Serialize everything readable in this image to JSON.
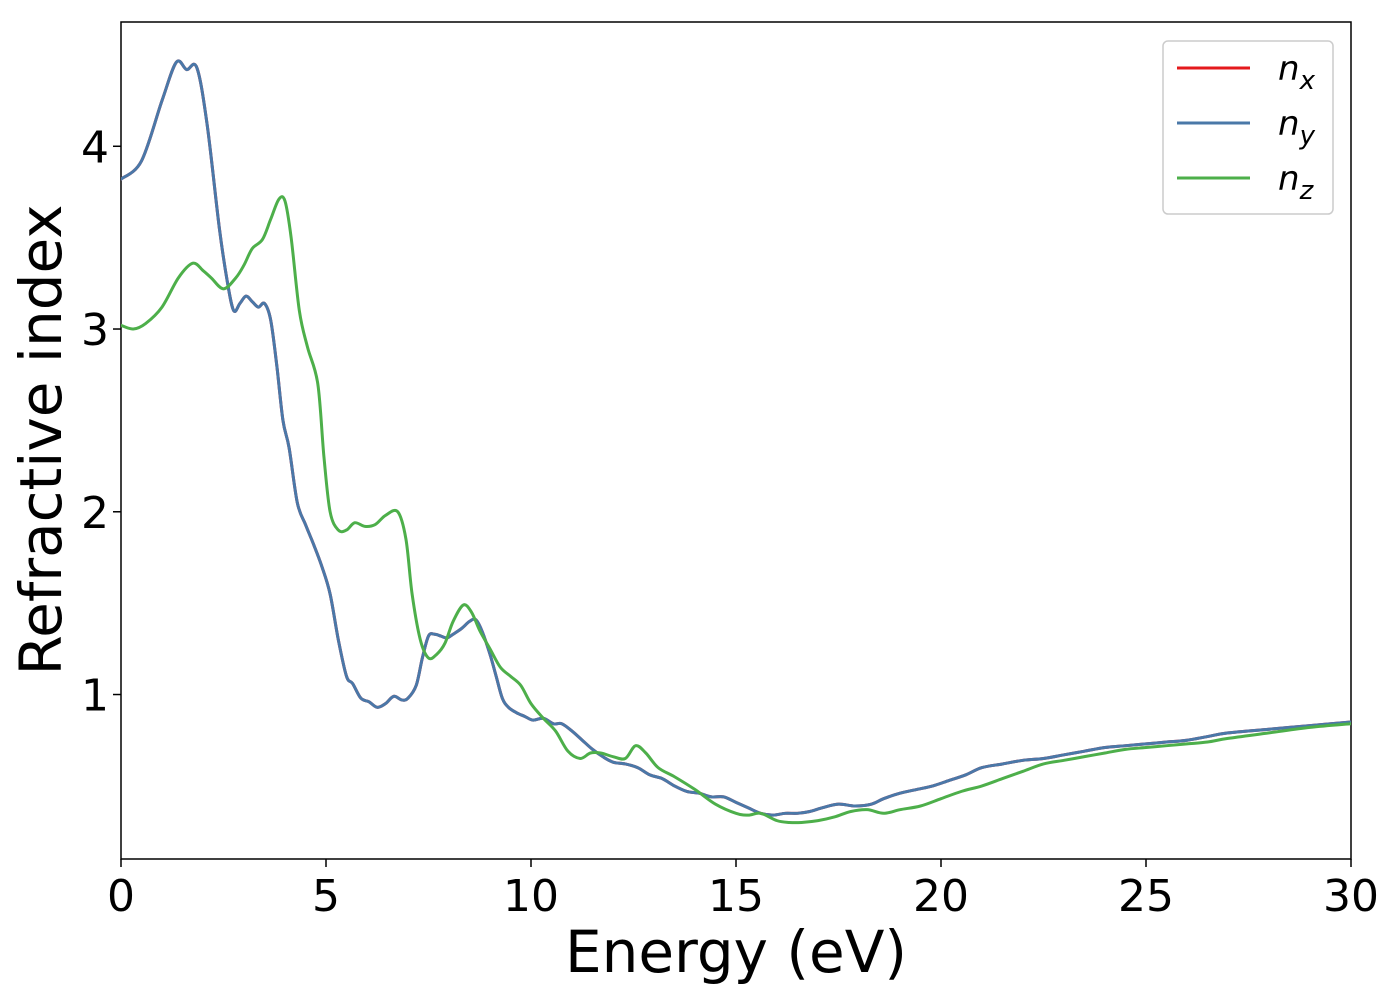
{
  "chart_data": {
    "type": "line",
    "xlabel": "Energy (eV)",
    "ylabel": "Refractive index",
    "xlim": [
      0,
      30
    ],
    "ylim": [
      0.1,
      4.68
    ],
    "xticks": [
      0,
      5,
      10,
      15,
      20,
      25,
      30
    ],
    "xtick_labels": [
      "0",
      "5",
      "10",
      "15",
      "20",
      "25",
      "30"
    ],
    "yticks": [
      1,
      2,
      3,
      4
    ],
    "ytick_labels": [
      "1",
      "2",
      "3",
      "4"
    ],
    "grid": false,
    "legend_position": "top-right",
    "series": [
      {
        "name": "n_x",
        "legend_base": "n",
        "legend_sub": "x",
        "color": "#e41a1c",
        "x": [
          0,
          0.5,
          1.0,
          1.35,
          1.6,
          1.85,
          2.1,
          2.4,
          2.6,
          2.75,
          2.9,
          3.05,
          3.2,
          3.35,
          3.5,
          3.65,
          3.8,
          3.95,
          4.1,
          4.3,
          4.5,
          4.7,
          4.9,
          5.1,
          5.3,
          5.5,
          5.65,
          5.85,
          6.05,
          6.25,
          6.45,
          6.65,
          6.85,
          7.0,
          7.2,
          7.35,
          7.5,
          7.65,
          7.8,
          7.95,
          8.1,
          8.3,
          8.5,
          8.65,
          8.8,
          9.0,
          9.15,
          9.3,
          9.45,
          9.65,
          9.85,
          10.05,
          10.3,
          10.55,
          10.75,
          11.0,
          11.25,
          11.5,
          11.75,
          12.0,
          12.3,
          12.6,
          12.9,
          13.2,
          13.5,
          13.8,
          14.1,
          14.4,
          14.7,
          15.0,
          15.3,
          15.6,
          15.9,
          16.2,
          16.5,
          16.8,
          17.1,
          17.5,
          17.9,
          18.3,
          18.6,
          19.0,
          19.4,
          19.8,
          20.2,
          20.6,
          21.0,
          21.5,
          22.0,
          22.5,
          23.0,
          23.5,
          24.0,
          24.5,
          25.0,
          25.5,
          26.0,
          26.5,
          27.0,
          28.0,
          29.0,
          30.0
        ],
        "y": [
          3.82,
          3.92,
          4.25,
          4.46,
          4.42,
          4.43,
          4.12,
          3.55,
          3.25,
          3.1,
          3.14,
          3.18,
          3.15,
          3.12,
          3.14,
          3.05,
          2.8,
          2.5,
          2.35,
          2.05,
          1.93,
          1.82,
          1.7,
          1.55,
          1.3,
          1.1,
          1.06,
          0.98,
          0.96,
          0.93,
          0.95,
          0.99,
          0.97,
          0.98,
          1.05,
          1.2,
          1.32,
          1.33,
          1.32,
          1.31,
          1.33,
          1.36,
          1.4,
          1.41,
          1.35,
          1.22,
          1.1,
          0.98,
          0.93,
          0.9,
          0.88,
          0.86,
          0.87,
          0.84,
          0.84,
          0.8,
          0.75,
          0.7,
          0.66,
          0.63,
          0.62,
          0.6,
          0.56,
          0.54,
          0.5,
          0.47,
          0.46,
          0.44,
          0.44,
          0.41,
          0.38,
          0.35,
          0.34,
          0.35,
          0.35,
          0.36,
          0.38,
          0.4,
          0.39,
          0.4,
          0.43,
          0.46,
          0.48,
          0.5,
          0.53,
          0.56,
          0.6,
          0.62,
          0.64,
          0.65,
          0.67,
          0.69,
          0.71,
          0.72,
          0.73,
          0.74,
          0.75,
          0.77,
          0.79,
          0.81,
          0.83,
          0.85
        ]
      },
      {
        "name": "n_y",
        "legend_base": "n",
        "legend_sub": "y",
        "color": "#4a78a8",
        "x": [
          0,
          0.5,
          1.0,
          1.35,
          1.6,
          1.85,
          2.1,
          2.4,
          2.6,
          2.75,
          2.9,
          3.05,
          3.2,
          3.35,
          3.5,
          3.65,
          3.8,
          3.95,
          4.1,
          4.3,
          4.5,
          4.7,
          4.9,
          5.1,
          5.3,
          5.5,
          5.65,
          5.85,
          6.05,
          6.25,
          6.45,
          6.65,
          6.85,
          7.0,
          7.2,
          7.35,
          7.5,
          7.65,
          7.8,
          7.95,
          8.1,
          8.3,
          8.5,
          8.65,
          8.8,
          9.0,
          9.15,
          9.3,
          9.45,
          9.65,
          9.85,
          10.05,
          10.3,
          10.55,
          10.75,
          11.0,
          11.25,
          11.5,
          11.75,
          12.0,
          12.3,
          12.6,
          12.9,
          13.2,
          13.5,
          13.8,
          14.1,
          14.4,
          14.7,
          15.0,
          15.3,
          15.6,
          15.9,
          16.2,
          16.5,
          16.8,
          17.1,
          17.5,
          17.9,
          18.3,
          18.6,
          19.0,
          19.4,
          19.8,
          20.2,
          20.6,
          21.0,
          21.5,
          22.0,
          22.5,
          23.0,
          23.5,
          24.0,
          24.5,
          25.0,
          25.5,
          26.0,
          26.5,
          27.0,
          28.0,
          29.0,
          30.0
        ],
        "y": [
          3.82,
          3.92,
          4.25,
          4.46,
          4.42,
          4.43,
          4.12,
          3.55,
          3.25,
          3.1,
          3.14,
          3.18,
          3.15,
          3.12,
          3.14,
          3.05,
          2.8,
          2.5,
          2.35,
          2.05,
          1.93,
          1.82,
          1.7,
          1.55,
          1.3,
          1.1,
          1.06,
          0.98,
          0.96,
          0.93,
          0.95,
          0.99,
          0.97,
          0.98,
          1.05,
          1.2,
          1.32,
          1.33,
          1.32,
          1.31,
          1.33,
          1.36,
          1.4,
          1.41,
          1.35,
          1.22,
          1.1,
          0.98,
          0.93,
          0.9,
          0.88,
          0.86,
          0.87,
          0.84,
          0.84,
          0.8,
          0.75,
          0.7,
          0.66,
          0.63,
          0.62,
          0.6,
          0.56,
          0.54,
          0.5,
          0.47,
          0.46,
          0.44,
          0.44,
          0.41,
          0.38,
          0.35,
          0.34,
          0.35,
          0.35,
          0.36,
          0.38,
          0.4,
          0.39,
          0.4,
          0.43,
          0.46,
          0.48,
          0.5,
          0.53,
          0.56,
          0.6,
          0.62,
          0.64,
          0.65,
          0.67,
          0.69,
          0.71,
          0.72,
          0.73,
          0.74,
          0.75,
          0.77,
          0.79,
          0.81,
          0.83,
          0.85
        ]
      },
      {
        "name": "n_z",
        "legend_base": "n",
        "legend_sub": "z",
        "color": "#4daf4a",
        "x": [
          0,
          0.3,
          0.6,
          1.0,
          1.4,
          1.75,
          2.0,
          2.2,
          2.5,
          2.8,
          3.0,
          3.2,
          3.45,
          3.65,
          3.85,
          4.0,
          4.15,
          4.35,
          4.55,
          4.8,
          4.95,
          5.1,
          5.3,
          5.5,
          5.7,
          5.95,
          6.2,
          6.45,
          6.75,
          6.95,
          7.1,
          7.3,
          7.5,
          7.7,
          7.9,
          8.1,
          8.35,
          8.55,
          8.75,
          9.0,
          9.25,
          9.5,
          9.75,
          10.0,
          10.3,
          10.6,
          10.9,
          11.2,
          11.45,
          11.7,
          12.0,
          12.3,
          12.55,
          12.8,
          13.1,
          13.5,
          14.0,
          14.5,
          15.0,
          15.3,
          15.6,
          16.0,
          16.3,
          16.6,
          17.0,
          17.4,
          17.8,
          18.2,
          18.6,
          19.0,
          19.5,
          20.0,
          20.5,
          21.0,
          21.5,
          22.0,
          22.5,
          23.0,
          23.5,
          24.0,
          24.5,
          25.0,
          25.5,
          26.0,
          26.5,
          27.0,
          28.0,
          29.0,
          30.0
        ],
        "y": [
          3.02,
          3.0,
          3.03,
          3.12,
          3.28,
          3.36,
          3.32,
          3.28,
          3.22,
          3.28,
          3.35,
          3.44,
          3.49,
          3.6,
          3.71,
          3.7,
          3.5,
          3.1,
          2.9,
          2.7,
          2.3,
          2.0,
          1.9,
          1.9,
          1.94,
          1.92,
          1.93,
          1.98,
          2.0,
          1.85,
          1.55,
          1.3,
          1.2,
          1.22,
          1.28,
          1.4,
          1.49,
          1.45,
          1.35,
          1.25,
          1.15,
          1.1,
          1.05,
          0.95,
          0.87,
          0.8,
          0.69,
          0.65,
          0.68,
          0.68,
          0.66,
          0.65,
          0.72,
          0.68,
          0.6,
          0.55,
          0.48,
          0.4,
          0.35,
          0.34,
          0.35,
          0.31,
          0.3,
          0.3,
          0.31,
          0.33,
          0.36,
          0.37,
          0.35,
          0.37,
          0.39,
          0.43,
          0.47,
          0.5,
          0.54,
          0.58,
          0.62,
          0.64,
          0.66,
          0.68,
          0.7,
          0.71,
          0.72,
          0.73,
          0.74,
          0.76,
          0.79,
          0.82,
          0.84
        ]
      }
    ]
  }
}
